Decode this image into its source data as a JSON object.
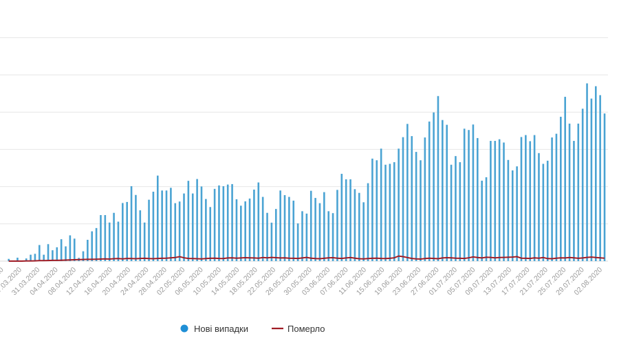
{
  "chart_data": {
    "type": "bar",
    "title": "",
    "xlabel": "",
    "ylabel": "",
    "ylim": [
      0,
      1500
    ],
    "y_grid_step": 250,
    "grid": true,
    "y_tick_labels_visible": false,
    "legend_placement": "bottom",
    "x_tick_labels": [
      "19.03.2020",
      "23.03.2020",
      "27.03.2020",
      "31.03.2020",
      "04.04.2020",
      "08.04.2020",
      "12.04.2020",
      "16.04.2020",
      "20.04.2020",
      "24.04.2020",
      "28.04.2020",
      "02.05.2020",
      "06.05.2020",
      "10.05.2020",
      "14.05.2020",
      "18.05.2020",
      "22.05.2020",
      "26.05.2020",
      "30.05.2020",
      "03.06.2020",
      "07.06.2020",
      "11.06.2020",
      "15.06.2020",
      "19.06.2020",
      "23.06.2020",
      "27.06.2020",
      "01.07.2020",
      "05.07.2020",
      "09.07.2020",
      "13.07.2020",
      "17.07.2020",
      "21.07.2020",
      "25.07.2020",
      "29.07.2020",
      "02.08.2020"
    ],
    "series": [
      {
        "name": "Нові випадки",
        "kind": "bar",
        "color": "#4aa3d3",
        "legend_color": "#1f8fd6",
        "values": [
          15,
          0,
          23,
          0,
          18,
          43,
          49,
          108,
          43,
          114,
          73,
          93,
          147,
          99,
          173,
          151,
          22,
          66,
          143,
          200,
          222,
          309,
          309,
          259,
          324,
          265,
          390,
          397,
          503,
          444,
          341,
          259,
          412,
          466,
          574,
          474,
          474,
          492,
          389,
          400,
          454,
          539,
          454,
          551,
          501,
          417,
          363,
          485,
          508,
          503,
          514,
          517,
          415,
          372,
          401,
          420,
          480,
          528,
          431,
          324,
          258,
          350,
          474,
          443,
          431,
          406,
          253,
          335,
          319,
          472,
          424,
          389,
          463,
          335,
          322,
          478,
          586,
          549,
          549,
          483,
          458,
          395,
          523,
          688,
          677,
          755,
          647,
          653,
          664,
          755,
          832,
          921,
          839,
          733,
          677,
          830,
          937,
          998,
          1108,
          947,
          915,
          647,
          705,
          664,
          889,
          880,
          917,
          826,
          540,
          563,
          807,
          807,
          818,
          796,
          679,
          609,
          636,
          833,
          846,
          805,
          846,
          725,
          653,
          674,
          830,
          855,
          969,
          1103,
          923,
          807,
          923,
          1023,
          1193,
          1091,
          1174,
          1114,
          991
        ]
      },
      {
        "name": "Померло",
        "kind": "line",
        "color": "#a01c25",
        "values": [
          0,
          0,
          0,
          0,
          1,
          1,
          2,
          3,
          3,
          4,
          5,
          5,
          6,
          7,
          8,
          9,
          10,
          11,
          12,
          12,
          13,
          14,
          15,
          14,
          16,
          17,
          15,
          18,
          17,
          16,
          18,
          19,
          17,
          16,
          18,
          19,
          20,
          22,
          24,
          30,
          22,
          18,
          17,
          16,
          15,
          17,
          19,
          20,
          18,
          17,
          21,
          22,
          20,
          21,
          23,
          22,
          21,
          20,
          24,
          22,
          25,
          23,
          21,
          22,
          20,
          19,
          18,
          21,
          25,
          20,
          17,
          16,
          19,
          22,
          23,
          20,
          18,
          21,
          24,
          20,
          16,
          15,
          17,
          19,
          20,
          18,
          17,
          19,
          22,
          34,
          30,
          24,
          18,
          15,
          14,
          17,
          20,
          18,
          16,
          21,
          23,
          22,
          20,
          19,
          18,
          22,
          28,
          24,
          21,
          26,
          25,
          22,
          24,
          25,
          26,
          27,
          30,
          20,
          19,
          18,
          22,
          20,
          24,
          17,
          16,
          20,
          22,
          21,
          24,
          22,
          19,
          21,
          25,
          27,
          24,
          22,
          20
        ]
      }
    ]
  },
  "legend": {
    "cases_label": "Нові випадки",
    "deaths_label": "Померло"
  }
}
